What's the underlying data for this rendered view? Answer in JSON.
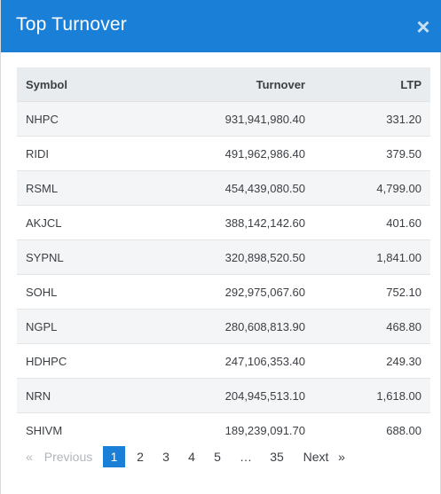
{
  "modal": {
    "title": "Top Turnover",
    "close_label": "×"
  },
  "table": {
    "headers": {
      "symbol": "Symbol",
      "turnover": "Turnover",
      "ltp": "LTP"
    },
    "rows": [
      {
        "symbol": "NHPC",
        "turnover": "931,941,980.40",
        "ltp": "331.20"
      },
      {
        "symbol": "RIDI",
        "turnover": "491,962,986.40",
        "ltp": "379.50"
      },
      {
        "symbol": "RSML",
        "turnover": "454,439,080.50",
        "ltp": "4,799.00"
      },
      {
        "symbol": "AKJCL",
        "turnover": "388,142,142.60",
        "ltp": "401.60"
      },
      {
        "symbol": "SYPNL",
        "turnover": "320,898,520.50",
        "ltp": "1,841.00"
      },
      {
        "symbol": "SOHL",
        "turnover": "292,975,067.60",
        "ltp": "752.10"
      },
      {
        "symbol": "NGPL",
        "turnover": "280,608,813.90",
        "ltp": "468.80"
      },
      {
        "symbol": "HDHPC",
        "turnover": "247,106,353.40",
        "ltp": "249.30"
      },
      {
        "symbol": "NRN",
        "turnover": "204,945,513.10",
        "ltp": "1,618.00"
      },
      {
        "symbol": "SHIVM",
        "turnover": "189,239,091.70",
        "ltp": "688.00"
      }
    ]
  },
  "pagination": {
    "prev_arrow": "«",
    "previous": "Previous",
    "pages": [
      "1",
      "2",
      "3",
      "4",
      "5"
    ],
    "ellipsis": "…",
    "last_page": "35",
    "next": "Next",
    "next_arrow": "»",
    "current_page": "1"
  }
}
